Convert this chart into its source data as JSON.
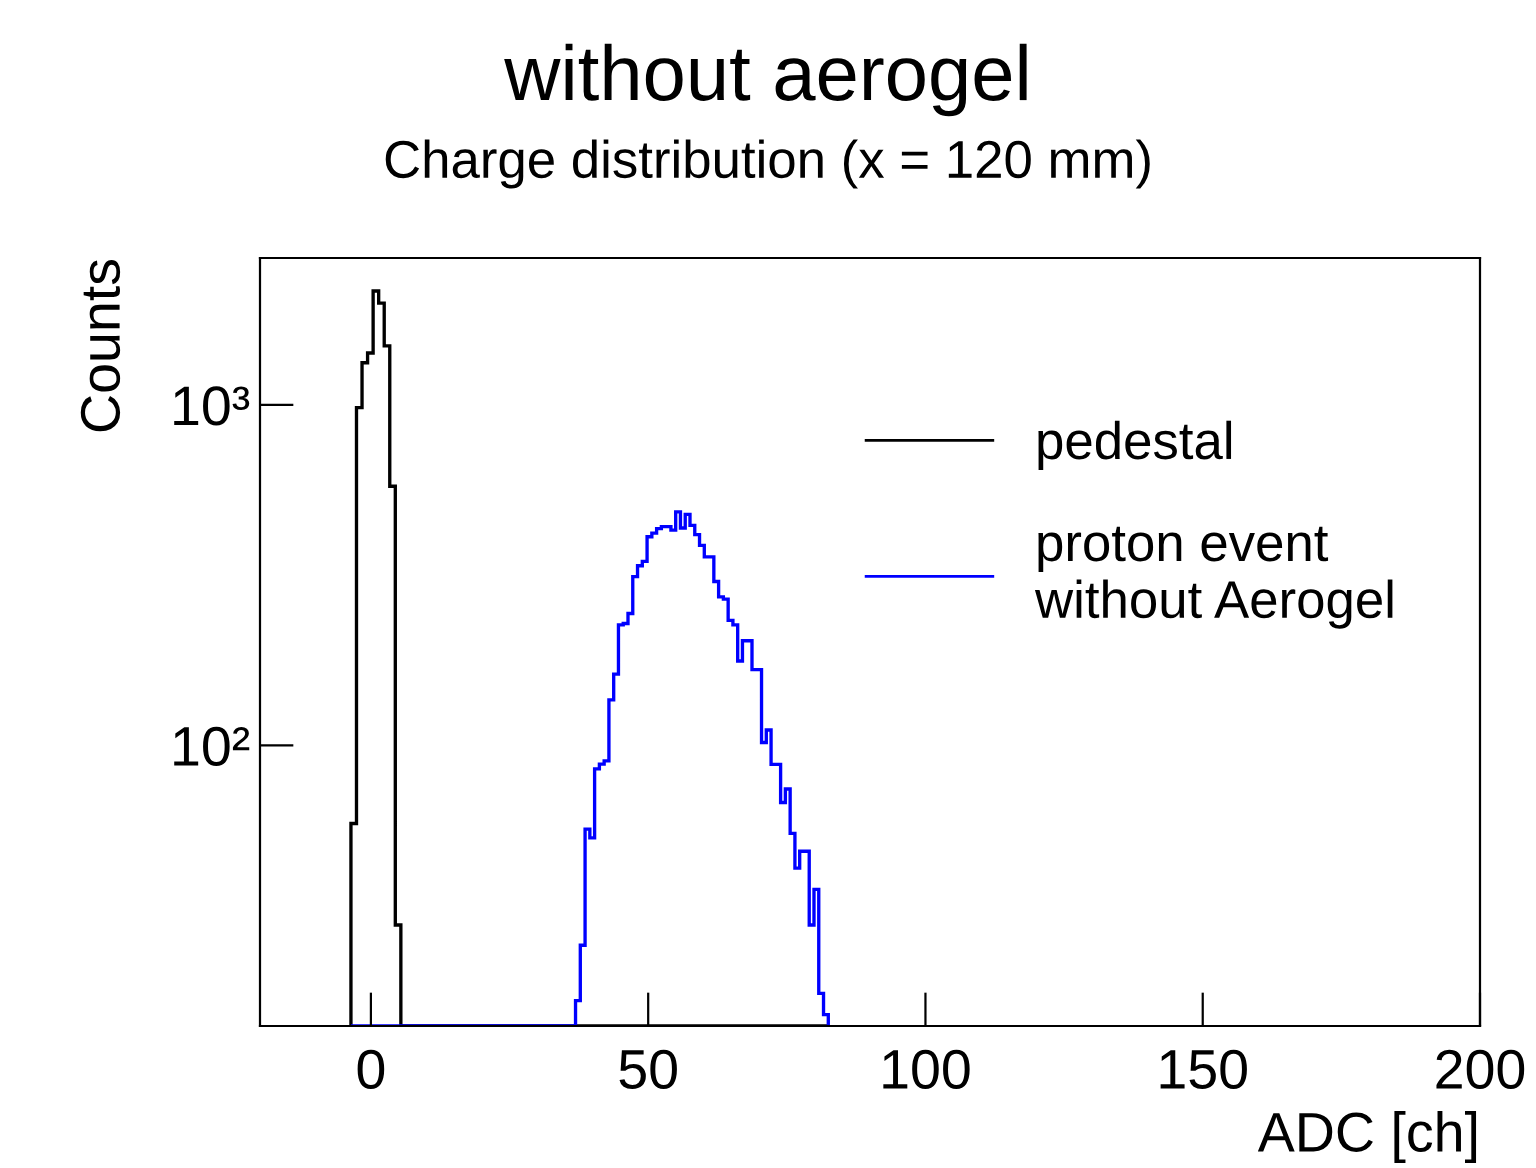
{
  "chart_data": {
    "type": "histogram",
    "title": "without aerogel",
    "subtitle": "Charge distribution (x = 120 mm)",
    "xlabel": "ADC [ch]",
    "ylabel": "Counts",
    "log": "y",
    "xlim": [
      -20,
      200
    ],
    "xticks": [
      0,
      50,
      100,
      150,
      200
    ],
    "ylim": [
      15,
      2700
    ],
    "yticks": [
      {
        "value": 100,
        "label": "10²"
      },
      {
        "value": 1000,
        "label": "10³"
      }
    ],
    "grid": false,
    "legend": "top right",
    "bins": [
      -3.6,
      -2.6,
      -1.6,
      -0.6,
      0.4,
      1.4,
      2.4,
      3.4,
      4.4,
      5.4,
      36.9,
      37.76,
      38.62,
      39.48,
      40.34,
      41.2,
      42.06,
      42.92,
      43.78,
      44.64,
      45.5,
      46.36,
      47.22,
      48.08,
      48.94,
      49.8,
      50.66,
      51.52,
      52.38,
      53.24,
      54.1,
      54.96,
      55.82,
      56.68,
      57.54,
      58.4,
      59.26,
      60.12,
      60.98,
      61.84,
      62.7,
      63.56,
      64.42,
      65.28,
      66.14,
      67.0,
      67.86,
      68.72,
      69.58,
      70.44,
      71.3,
      72.16,
      73.02,
      73.88,
      74.74,
      75.6,
      76.46,
      77.32,
      78.18,
      79.04,
      79.9,
      80.76,
      81.62,
      82.48
    ],
    "series": [
      {
        "name": "pedestal",
        "color": "#000000",
        "values": [
          59,
          982,
          1330,
          1420,
          2160,
          1990,
          1490,
          577,
          29.7,
          null,
          null,
          null,
          null,
          null,
          null,
          null,
          null,
          null,
          null,
          null,
          null,
          null,
          null,
          null,
          null,
          null,
          null,
          null,
          null,
          null,
          null,
          null,
          null,
          null,
          null,
          null,
          null,
          null,
          null,
          null,
          null,
          null,
          null,
          null,
          null,
          null,
          null,
          null,
          null,
          null,
          null,
          null,
          null,
          null,
          null,
          null,
          null,
          null,
          null,
          null,
          null,
          null,
          null
        ]
      },
      {
        "name": "proton event\nwithout Aerogel",
        "color": "#0000ff",
        "values": [
          null,
          null,
          null,
          null,
          null,
          null,
          null,
          null,
          null,
          null,
          17.8,
          25.9,
          56.8,
          53.5,
          85.3,
          88.1,
          90.1,
          136,
          162,
          226,
          228,
          244,
          313,
          337,
          347,
          410,
          420,
          433,
          439,
          439,
          429,
          485,
          435,
          477,
          443,
          416,
          387,
          358,
          358,
          303,
          273,
          269,
          233,
          226,
          177,
          203,
          203,
          167,
          167,
          102,
          111,
          88,
          88,
          68,
          74.5,
          55.2,
          43.6,
          48.9,
          48.9,
          29.7,
          37.8,
          18.7,
          16.2
        ]
      }
    ]
  }
}
